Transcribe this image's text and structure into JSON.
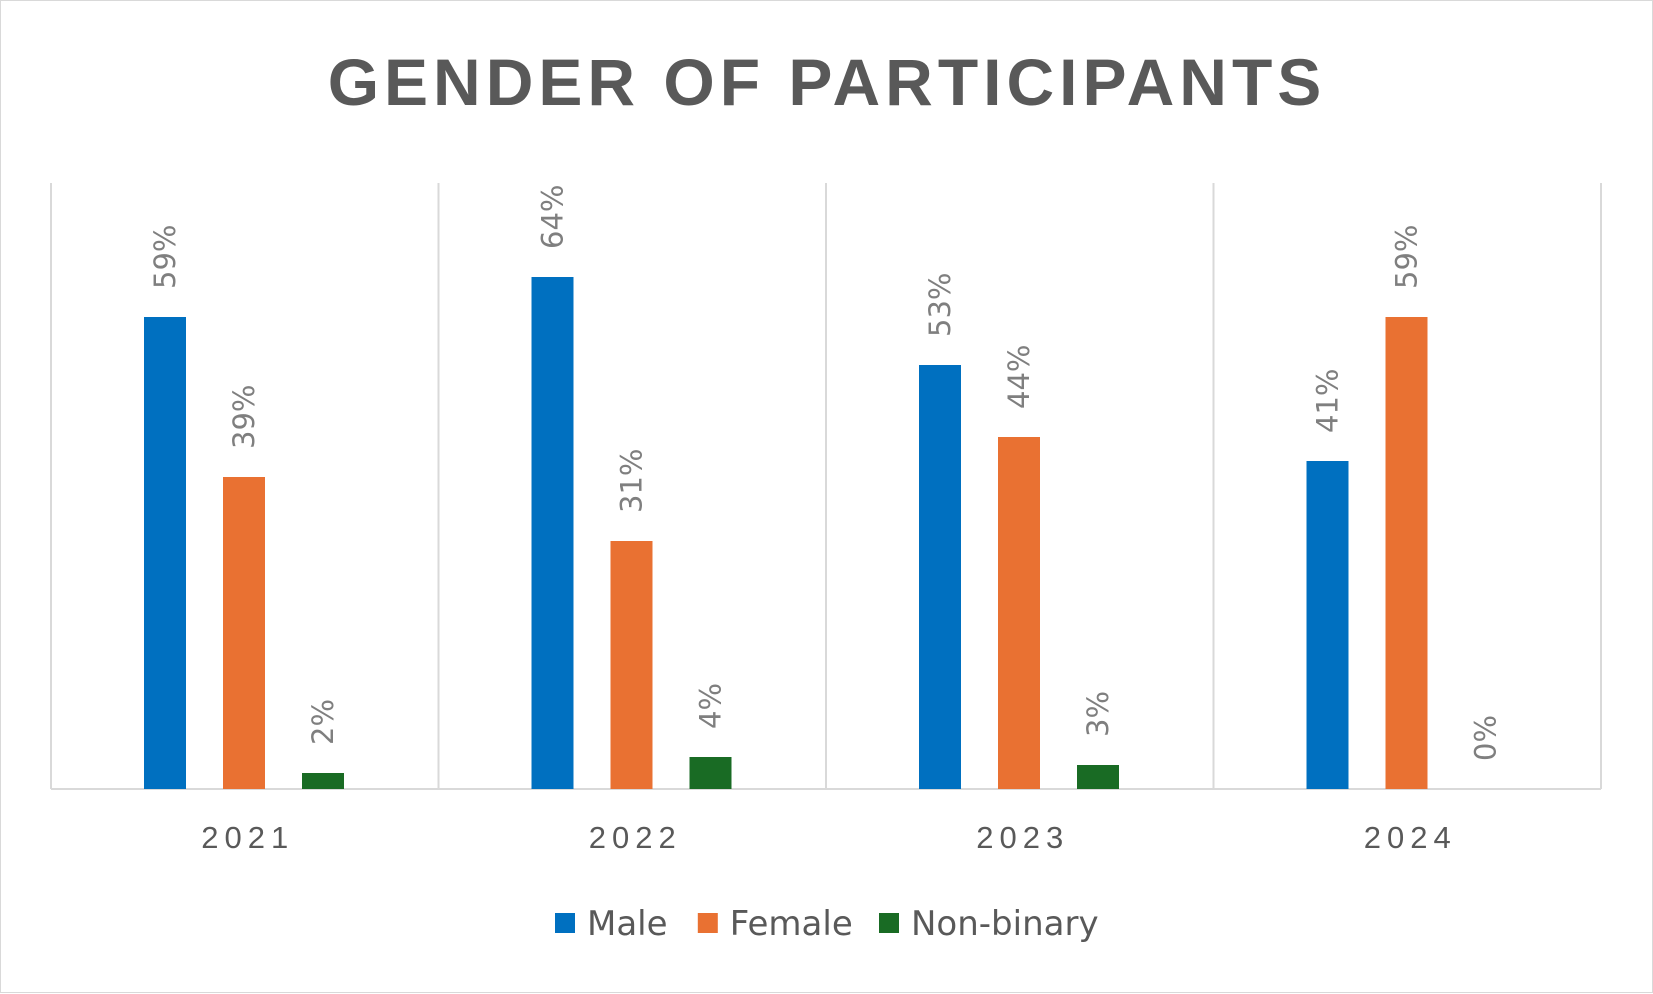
{
  "chart_data": {
    "type": "bar",
    "title": "GENDER OF PARTICIPANTS",
    "xlabel": "",
    "ylabel": "",
    "categories": [
      "2021",
      "2022",
      "2023",
      "2024"
    ],
    "series": [
      {
        "name": "Male",
        "color": "#0070C0",
        "values": [
          59,
          64,
          53,
          41
        ],
        "labels": [
          "59%",
          "64%",
          "53%",
          "41%"
        ]
      },
      {
        "name": "Female",
        "color": "#E97132",
        "values": [
          39,
          31,
          44,
          59
        ],
        "labels": [
          "39%",
          "31%",
          "44%",
          "59%"
        ]
      },
      {
        "name": "Non-binary",
        "color": "#196B24",
        "values": [
          2,
          4,
          3,
          0
        ],
        "labels": [
          "2%",
          "4%",
          "3%",
          "0%"
        ]
      }
    ],
    "ylim": [
      0,
      70
    ],
    "value_unit": "percent",
    "data_labels": "rotated 90 degrees above bars",
    "gridlines": "vertical category separators",
    "legend_position": "bottom",
    "grid_color": "#d9d9d9"
  }
}
